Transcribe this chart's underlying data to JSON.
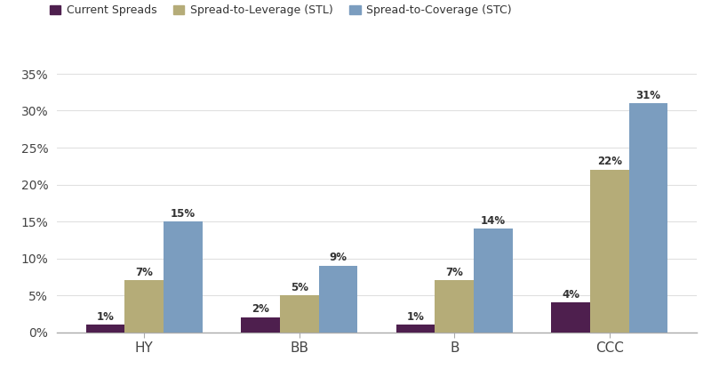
{
  "categories": [
    "HY",
    "BB",
    "B",
    "CCC"
  ],
  "series": [
    {
      "name": "Current Spreads",
      "values": [
        1,
        2,
        1,
        4
      ],
      "color": "#4e1f4e"
    },
    {
      "name": "Spread-to-Leverage (STL)",
      "values": [
        7,
        5,
        7,
        22
      ],
      "color": "#b5ac78"
    },
    {
      "name": "Spread-to-Coverage (STC)",
      "values": [
        15,
        9,
        14,
        31
      ],
      "color": "#7b9dbf"
    }
  ],
  "ylim": [
    0,
    37
  ],
  "yticks": [
    0,
    5,
    10,
    15,
    20,
    25,
    30,
    35
  ],
  "ytick_labels": [
    "0%",
    "5%",
    "10%",
    "15%",
    "20%",
    "25%",
    "30%",
    "35%"
  ],
  "bar_width": 0.25,
  "tick_fontsize": 10,
  "legend_fontsize": 9,
  "bg_color": "#ffffff",
  "grid_color": "#e0e0e0",
  "annotation_fontsize": 8.5,
  "annotation_color": "#333333",
  "xtick_fontsize": 11,
  "axis_color": "#aaaaaa"
}
